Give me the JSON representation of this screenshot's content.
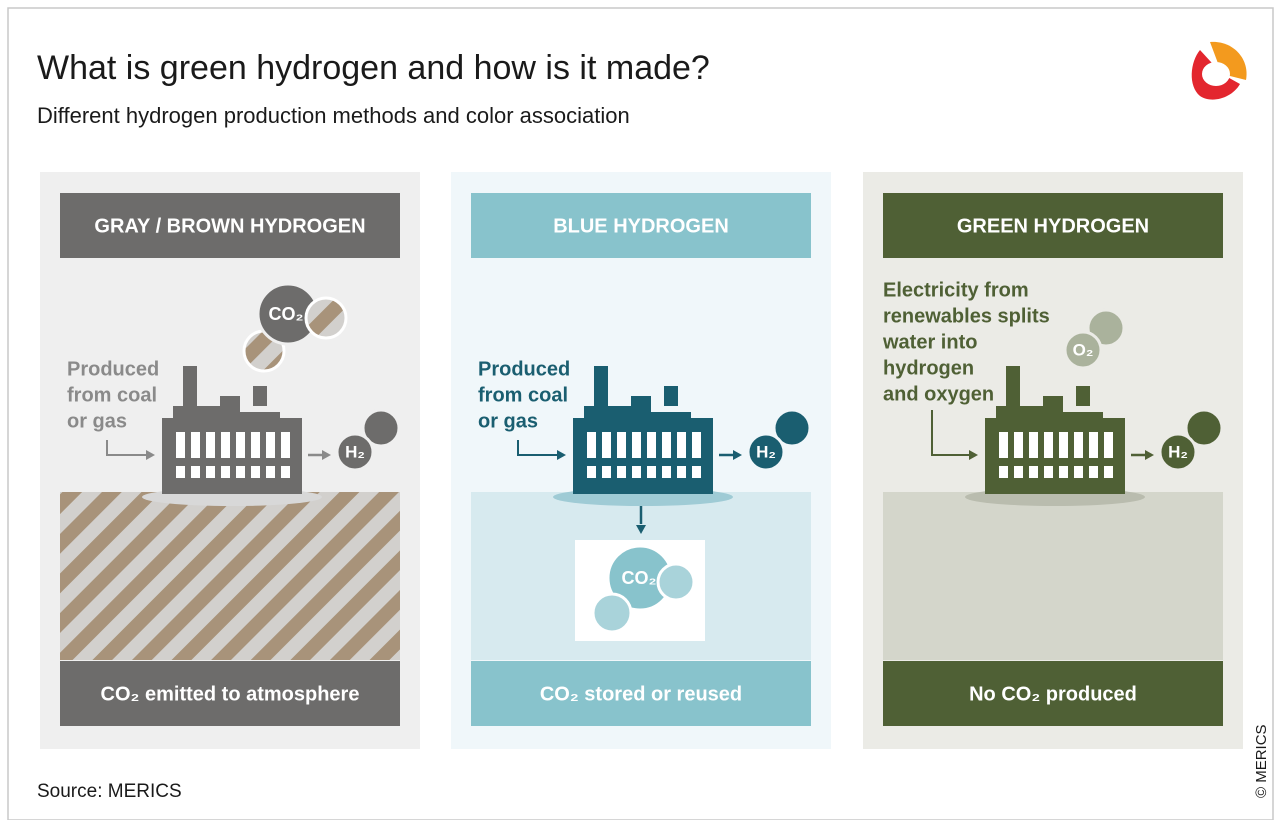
{
  "header": {
    "title": "What is green hydrogen and how is it made?",
    "subtitle": "Different hydrogen production methods and color association"
  },
  "panels": [
    {
      "title": "GRAY / BROWN HYDROGEN",
      "description": [
        "Produced",
        "from coal",
        "or gas"
      ],
      "bubbles": [
        "CO₂",
        "H₂"
      ],
      "footer": "CO₂ emitted to atmosphere"
    },
    {
      "title": "BLUE HYDROGEN",
      "description": [
        "Produced",
        "from coal",
        "or gas"
      ],
      "bubbles": [
        "H₂",
        "CO₂"
      ],
      "footer": "CO₂ stored or reused"
    },
    {
      "title": "GREEN HYDROGEN",
      "description": [
        "Electricity from",
        "renewables splits",
        "water into",
        "hydrogen",
        "and oxygen"
      ],
      "bubbles": [
        "O₂",
        "H₂"
      ],
      "footer": "No CO₂ produced"
    }
  ],
  "source": "Source: MERICS",
  "copyright": "© MERICS"
}
